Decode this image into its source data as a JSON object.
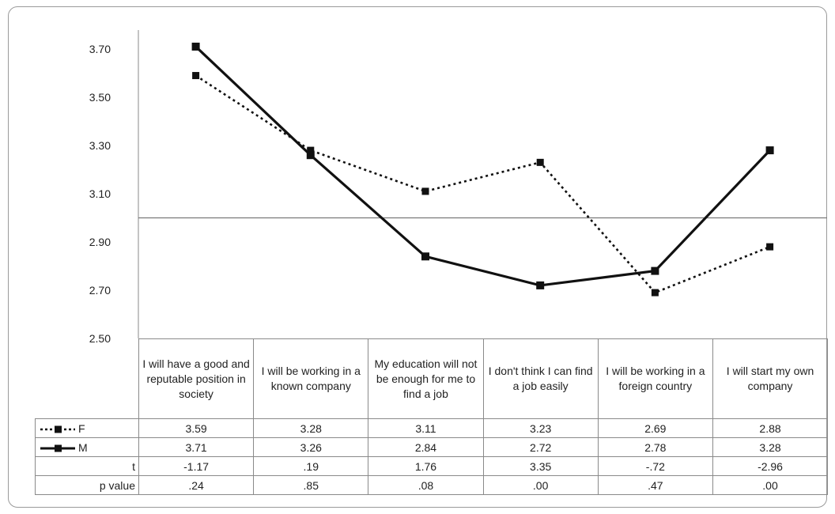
{
  "chart_data": {
    "type": "line",
    "categories": [
      "I will have a good and reputable position in society",
      "I will be working in a known company",
      "My education will not be enough for me to find a job",
      "I don't think I can find a job easily",
      "I will be working in a foreign country",
      "I will start my own company"
    ],
    "series": [
      {
        "name": "F",
        "values": [
          3.59,
          3.28,
          3.11,
          3.23,
          2.69,
          2.88
        ],
        "style": "dotted",
        "color": "#111111"
      },
      {
        "name": "M",
        "values": [
          3.71,
          3.26,
          2.84,
          2.72,
          2.78,
          3.28
        ],
        "style": "solid",
        "color": "#111111"
      }
    ],
    "ylim": [
      2.5,
      3.75
    ],
    "yticks": [
      "2.50",
      "2.70",
      "2.90",
      "3.10",
      "3.30",
      "3.50",
      "3.70"
    ],
    "reference_line": 3.0,
    "grid": false,
    "legend": "table-left",
    "table": {
      "rows": [
        {
          "label": "F",
          "values": [
            "3.59",
            "3.28",
            "3.11",
            "3.23",
            "2.69",
            "2.88"
          ]
        },
        {
          "label": "M",
          "values": [
            "3.71",
            "3.26",
            "2.84",
            "2.72",
            "2.78",
            "3.28"
          ]
        },
        {
          "label": "t",
          "values": [
            "-1.17",
            ".19",
            "1.76",
            "3.35",
            "-.72",
            "-2.96"
          ]
        },
        {
          "label": "p value",
          "values": [
            ".24",
            ".85",
            ".08",
            ".00",
            ".47",
            ".00"
          ]
        }
      ]
    }
  }
}
